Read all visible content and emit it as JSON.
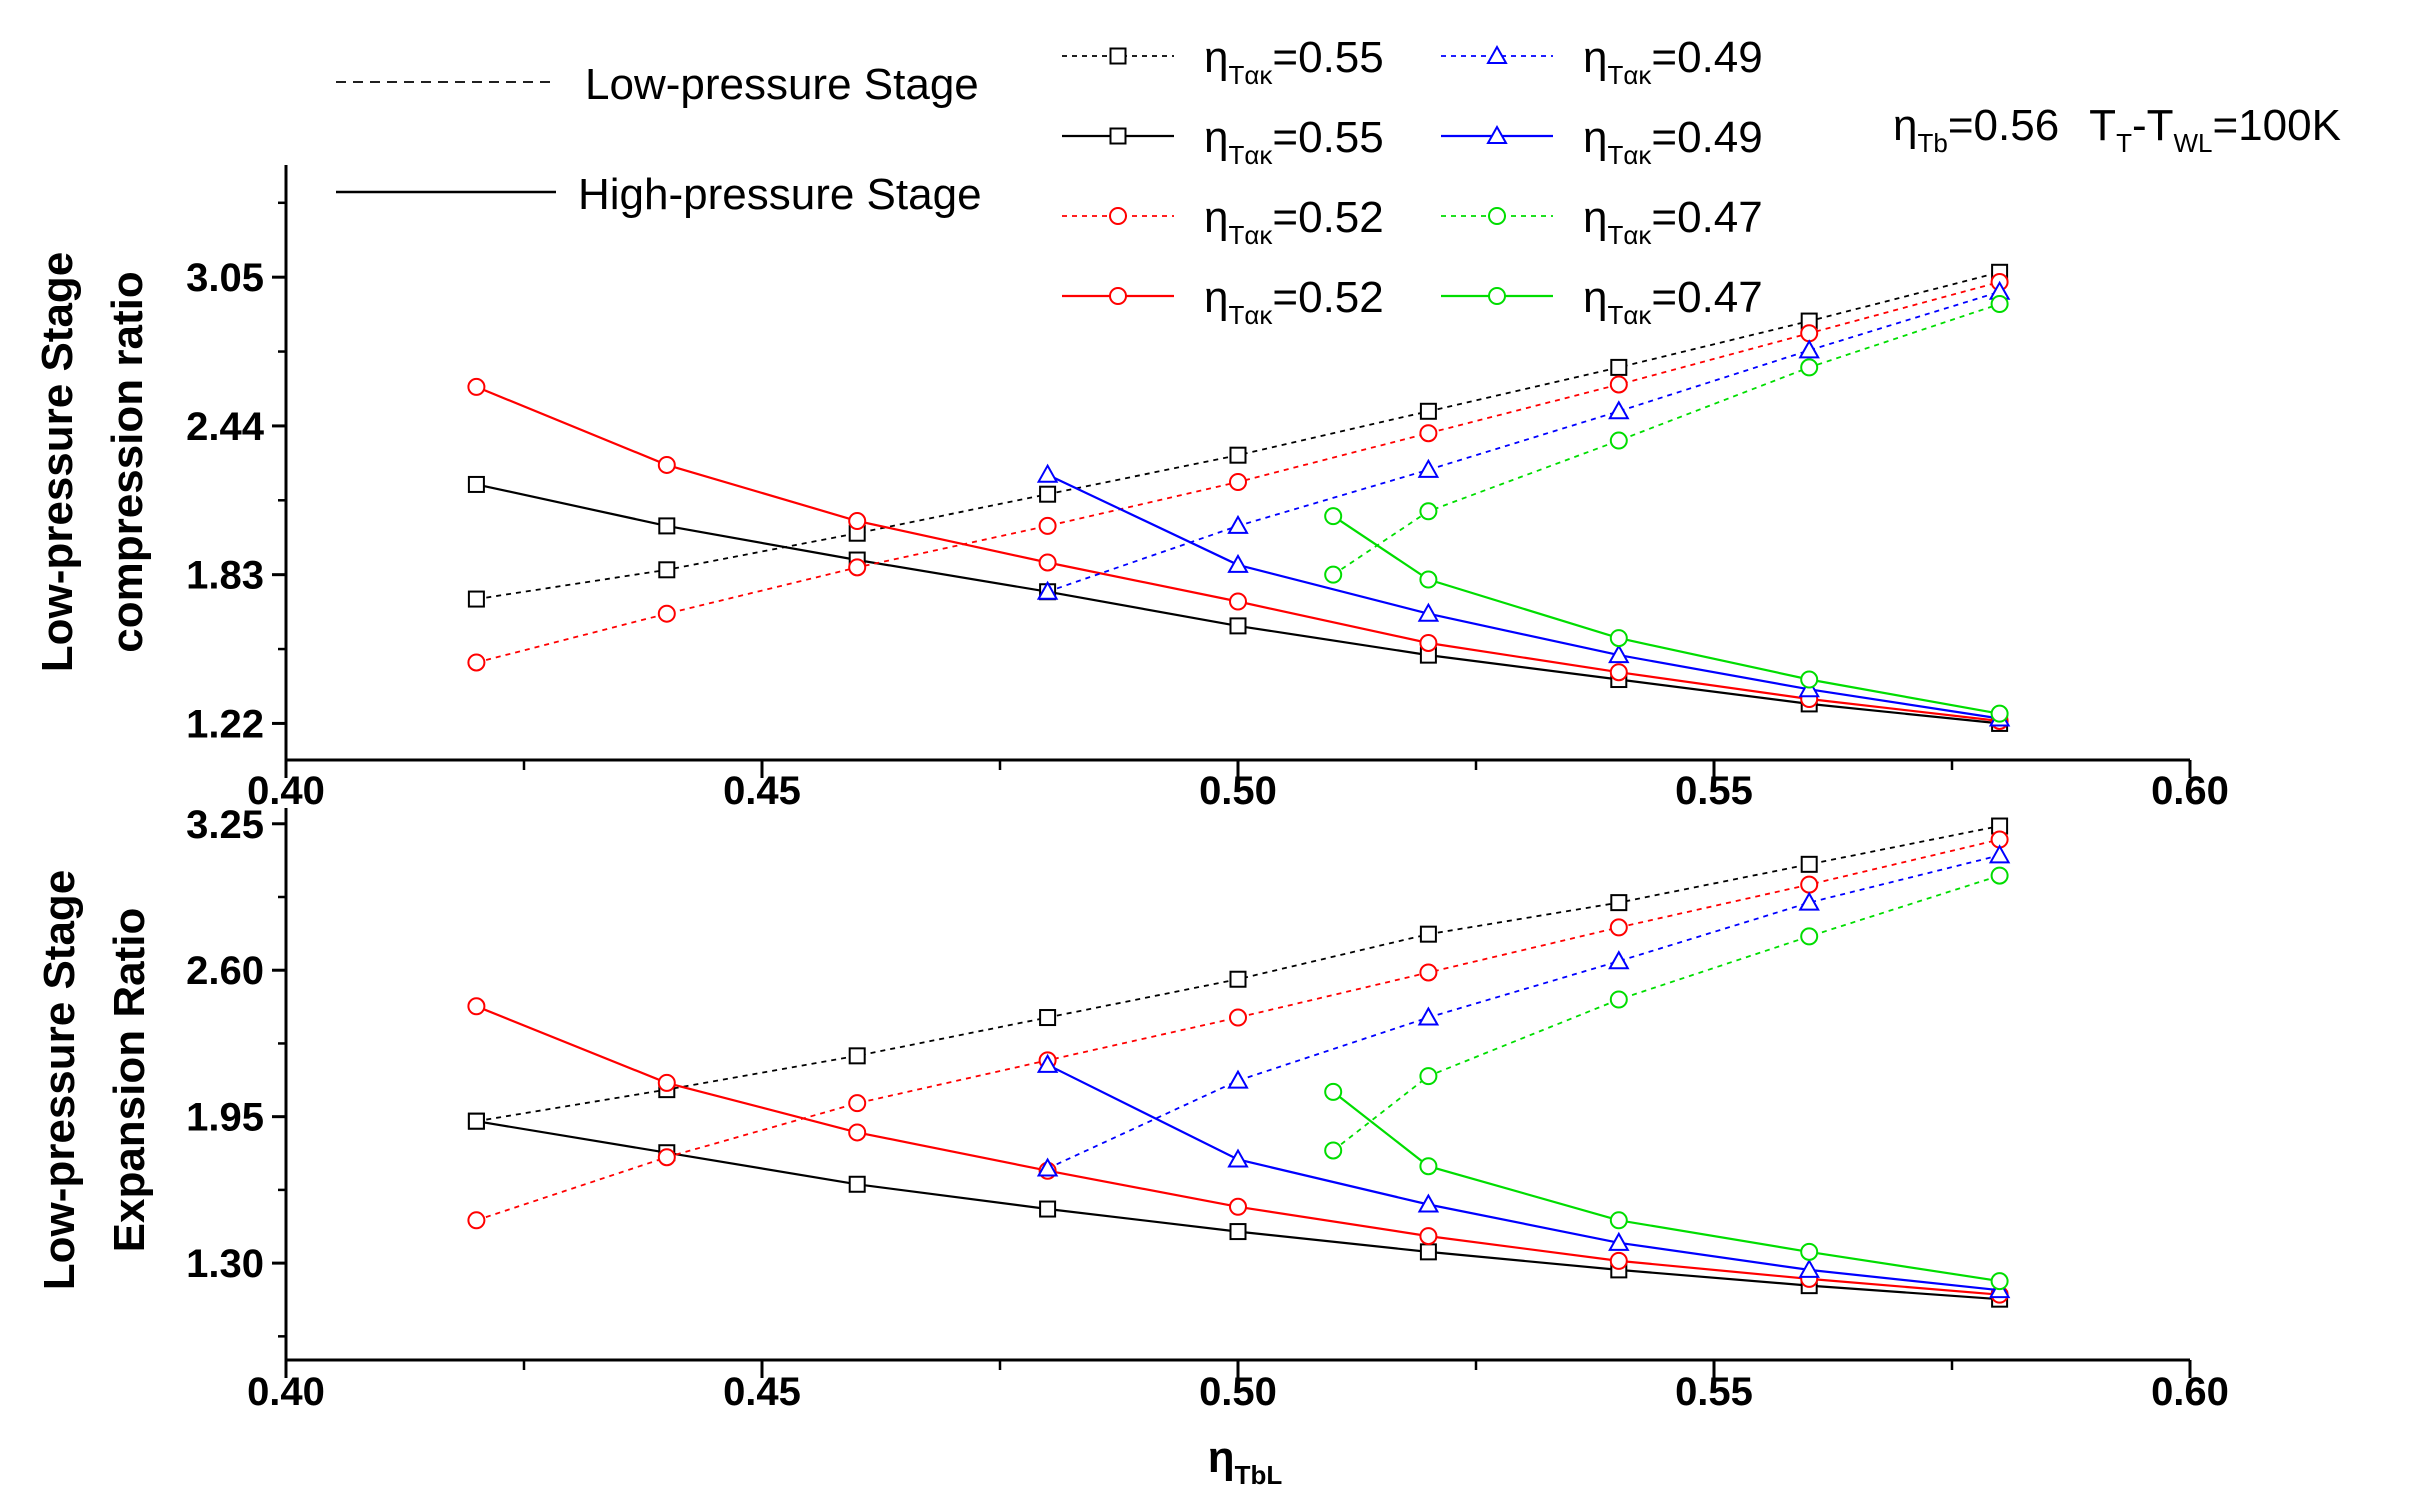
{
  "chart_data": [
    {
      "type": "line",
      "panel": "top",
      "ylabel_lines": [
        "Low-pressure Stage",
        "compression ratio"
      ],
      "xlim": [
        0.4,
        0.6
      ],
      "ylim": [
        1.07,
        3.51
      ],
      "xticks": [
        "0.40",
        "0.45",
        "0.50",
        "0.55",
        "0.60"
      ],
      "yticks": [
        "1.22",
        "1.83",
        "2.44",
        "3.05"
      ],
      "series": [
        {
          "name": "Low-pressure Stage ηTακ=0.55",
          "stage": "low",
          "color": "#000000",
          "marker": "square",
          "x": [
            0.42,
            0.44,
            0.46,
            0.48,
            0.5,
            0.52,
            0.54,
            0.56,
            0.58
          ],
          "y": [
            1.73,
            1.85,
            2.0,
            2.16,
            2.32,
            2.5,
            2.68,
            2.87,
            3.07
          ]
        },
        {
          "name": "High-pressure Stage ηTακ=0.55",
          "stage": "high",
          "color": "#000000",
          "marker": "square",
          "x": [
            0.42,
            0.44,
            0.46,
            0.48,
            0.5,
            0.52,
            0.54,
            0.56,
            0.58
          ],
          "y": [
            2.2,
            2.03,
            1.89,
            1.76,
            1.62,
            1.5,
            1.4,
            1.3,
            1.22
          ]
        },
        {
          "name": "Low-pressure Stage ηTακ=0.52",
          "stage": "low",
          "color": "#ff0000",
          "marker": "circle",
          "x": [
            0.42,
            0.44,
            0.46,
            0.48,
            0.5,
            0.52,
            0.54,
            0.56,
            0.58
          ],
          "y": [
            1.47,
            1.67,
            1.86,
            2.03,
            2.21,
            2.41,
            2.61,
            2.82,
            3.03
          ]
        },
        {
          "name": "High-pressure Stage ηTακ=0.52",
          "stage": "high",
          "color": "#ff0000",
          "marker": "circle",
          "x": [
            0.42,
            0.44,
            0.46,
            0.48,
            0.5,
            0.52,
            0.54,
            0.56,
            0.58
          ],
          "y": [
            2.6,
            2.28,
            2.05,
            1.88,
            1.72,
            1.55,
            1.43,
            1.32,
            1.23
          ]
        },
        {
          "name": "Low-pressure Stage ηTακ=0.49",
          "stage": "low",
          "color": "#0000ff",
          "marker": "triangle",
          "x": [
            0.48,
            0.5,
            0.52,
            0.54,
            0.56,
            0.58
          ],
          "y": [
            1.76,
            2.03,
            2.26,
            2.5,
            2.75,
            2.99
          ]
        },
        {
          "name": "High-pressure Stage ηTακ=0.49",
          "stage": "high",
          "color": "#0000ff",
          "marker": "triangle",
          "x": [
            0.48,
            0.5,
            0.52,
            0.54,
            0.56,
            0.58
          ],
          "y": [
            2.24,
            1.87,
            1.67,
            1.5,
            1.36,
            1.24
          ]
        },
        {
          "name": "Low-pressure Stage ηTακ=0.47",
          "stage": "low",
          "color": "#00dd00",
          "marker": "circle",
          "x": [
            0.51,
            0.52,
            0.54,
            0.56,
            0.58
          ],
          "y": [
            1.83,
            2.09,
            2.38,
            2.68,
            2.94
          ]
        },
        {
          "name": "High-pressure Stage ηTακ=0.47",
          "stage": "high",
          "color": "#00dd00",
          "marker": "circle",
          "x": [
            0.51,
            0.52,
            0.54,
            0.56,
            0.58
          ],
          "y": [
            2.07,
            1.81,
            1.57,
            1.4,
            1.26
          ]
        }
      ]
    },
    {
      "type": "line",
      "panel": "bottom",
      "ylabel_lines": [
        "Low-pressure Stage",
        "Expansion Ratio"
      ],
      "xlabel_main": "η",
      "xlabel_sub": "TbL",
      "xlim": [
        0.4,
        0.6
      ],
      "ylim": [
        0.87,
        3.32
      ],
      "xticks": [
        "0.40",
        "0.45",
        "0.50",
        "0.55",
        "0.60"
      ],
      "yticks": [
        "1.30",
        "1.95",
        "2.60",
        "3.25"
      ],
      "series": [
        {
          "name": "Low-pressure Stage ηTακ=0.55",
          "stage": "low",
          "color": "#000000",
          "marker": "square",
          "x": [
            0.42,
            0.44,
            0.46,
            0.48,
            0.5,
            0.52,
            0.54,
            0.56,
            0.58
          ],
          "y": [
            1.93,
            2.07,
            2.22,
            2.39,
            2.56,
            2.76,
            2.9,
            3.07,
            3.24
          ]
        },
        {
          "name": "High-pressure Stage ηTακ=0.55",
          "stage": "high",
          "color": "#000000",
          "marker": "square",
          "x": [
            0.42,
            0.44,
            0.46,
            0.48,
            0.5,
            0.52,
            0.54,
            0.56,
            0.58
          ],
          "y": [
            1.93,
            1.79,
            1.65,
            1.54,
            1.44,
            1.35,
            1.27,
            1.2,
            1.14
          ]
        },
        {
          "name": "Low-pressure Stage ηTακ=0.52",
          "stage": "low",
          "color": "#ff0000",
          "marker": "circle",
          "x": [
            0.42,
            0.44,
            0.46,
            0.48,
            0.5,
            0.52,
            0.54,
            0.56,
            0.58
          ],
          "y": [
            1.49,
            1.77,
            2.01,
            2.2,
            2.39,
            2.59,
            2.79,
            2.98,
            3.18
          ]
        },
        {
          "name": "High-pressure Stage ηTακ=0.52",
          "stage": "high",
          "color": "#ff0000",
          "marker": "circle",
          "x": [
            0.42,
            0.44,
            0.46,
            0.48,
            0.5,
            0.52,
            0.54,
            0.56,
            0.58
          ],
          "y": [
            2.44,
            2.1,
            1.88,
            1.71,
            1.55,
            1.42,
            1.31,
            1.23,
            1.16
          ]
        },
        {
          "name": "Low-pressure Stage ηTακ=0.49",
          "stage": "low",
          "color": "#0000ff",
          "marker": "triangle",
          "x": [
            0.48,
            0.5,
            0.52,
            0.54,
            0.56,
            0.58
          ],
          "y": [
            1.72,
            2.11,
            2.39,
            2.64,
            2.9,
            3.11
          ]
        },
        {
          "name": "High-pressure Stage ηTακ=0.49",
          "stage": "high",
          "color": "#0000ff",
          "marker": "triangle",
          "x": [
            0.48,
            0.5,
            0.52,
            0.54,
            0.56,
            0.58
          ],
          "y": [
            2.18,
            1.76,
            1.56,
            1.39,
            1.27,
            1.18
          ]
        },
        {
          "name": "Low-pressure Stage ηTακ=0.47",
          "stage": "low",
          "color": "#00dd00",
          "marker": "circle",
          "x": [
            0.51,
            0.52,
            0.54,
            0.56,
            0.58
          ],
          "y": [
            1.8,
            2.13,
            2.47,
            2.75,
            3.02
          ]
        },
        {
          "name": "High-pressure Stage ηTακ=0.47",
          "stage": "high",
          "color": "#00dd00",
          "marker": "circle",
          "x": [
            0.51,
            0.52,
            0.54,
            0.56,
            0.58
          ],
          "y": [
            2.06,
            1.73,
            1.49,
            1.35,
            1.22
          ]
        }
      ]
    }
  ],
  "legend": {
    "stage_entries": [
      {
        "label": "Low-pressure Stage",
        "style": "dashed"
      },
      {
        "label": "High-pressure Stage",
        "style": "solid"
      }
    ],
    "series_entries": [
      {
        "main": "η",
        "sub": "Tακ",
        "value": "=0.55",
        "color": "#000000",
        "marker": "square",
        "style": "dotted"
      },
      {
        "main": "η",
        "sub": "Tακ",
        "value": "=0.55",
        "color": "#000000",
        "marker": "square",
        "style": "solid"
      },
      {
        "main": "η",
        "sub": "Tακ",
        "value": "=0.52",
        "color": "#ff0000",
        "marker": "circle",
        "style": "dotted"
      },
      {
        "main": "η",
        "sub": "Tακ",
        "value": "=0.52",
        "color": "#ff0000",
        "marker": "circle",
        "style": "solid"
      },
      {
        "main": "η",
        "sub": "Tακ",
        "value": "=0.49",
        "color": "#0000ff",
        "marker": "triangle",
        "style": "dotted"
      },
      {
        "main": "η",
        "sub": "Tακ",
        "value": "=0.49",
        "color": "#0000ff",
        "marker": "triangle",
        "style": "solid"
      },
      {
        "main": "η",
        "sub": "Tακ",
        "value": "=0.47",
        "color": "#00dd00",
        "marker": "circle",
        "style": "dotted"
      },
      {
        "main": "η",
        "sub": "Tακ",
        "value": "=0.47",
        "color": "#00dd00",
        "marker": "circle",
        "style": "solid"
      }
    ]
  },
  "annotation": {
    "eta_main": "η",
    "eta_sub": "Tb",
    "eta_value": "=0.56",
    "t_main": "T",
    "t_sub1": "T",
    "t_dash": "-T",
    "t_sub2": "WL",
    "t_value": "=100K"
  }
}
